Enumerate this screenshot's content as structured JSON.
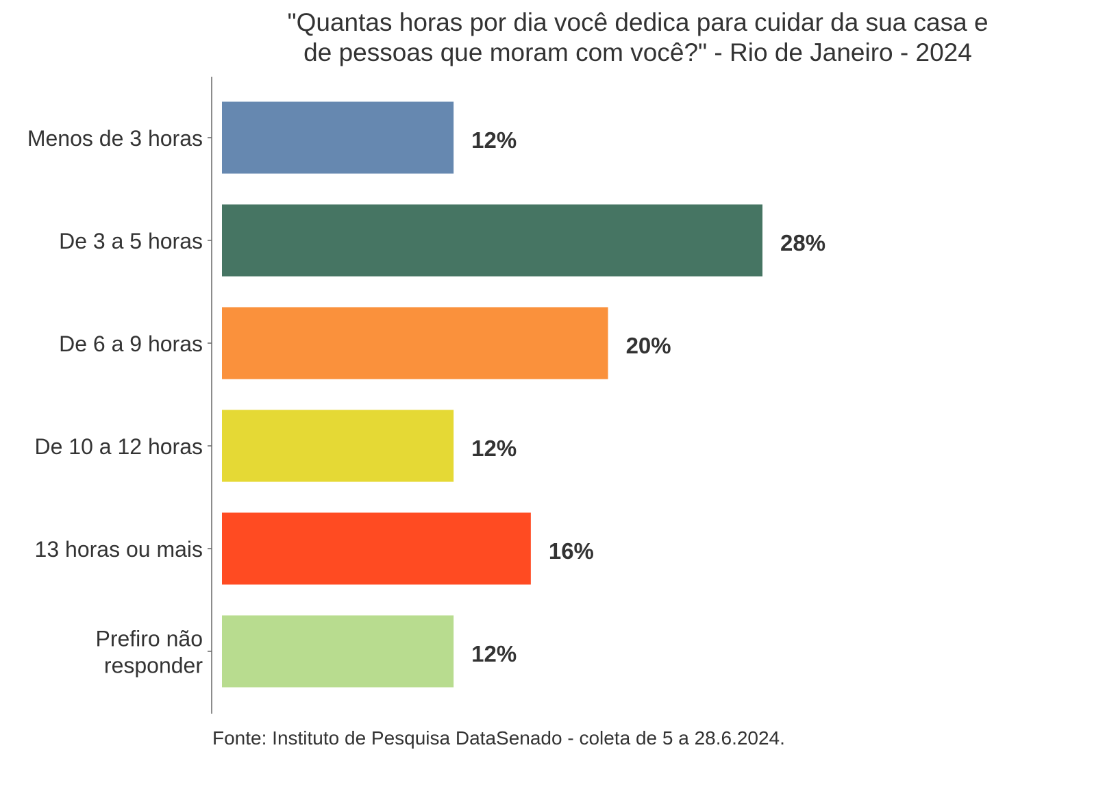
{
  "chart_data": {
    "type": "bar",
    "orientation": "horizontal",
    "title": [
      "\"Quantas horas por dia você dedica para cuidar da sua casa e",
      "de pessoas que moram com você?\" - Rio de Janeiro - 2024"
    ],
    "categories": [
      [
        "Menos de 3 horas"
      ],
      [
        "De 3 a 5 horas"
      ],
      [
        "De 6 a 9 horas"
      ],
      [
        "De 10 a 12 horas"
      ],
      [
        "13 horas ou mais"
      ],
      [
        "Prefiro não",
        "responder"
      ]
    ],
    "values": [
      12,
      28,
      20,
      12,
      16,
      12
    ],
    "value_labels": [
      "12%",
      "28%",
      "20%",
      "12%",
      "16%",
      "12%"
    ],
    "colors": [
      "#6688B0",
      "#467563",
      "#FA913C",
      "#E5D935",
      "#FF4B22",
      "#B8DC8F"
    ],
    "xlabel": "",
    "ylabel": "",
    "xlim": [
      0,
      28
    ],
    "grid": false,
    "caption": "Fonte: Instituto de Pesquisa DataSenado - coleta de 5 a 28.6.2024."
  }
}
